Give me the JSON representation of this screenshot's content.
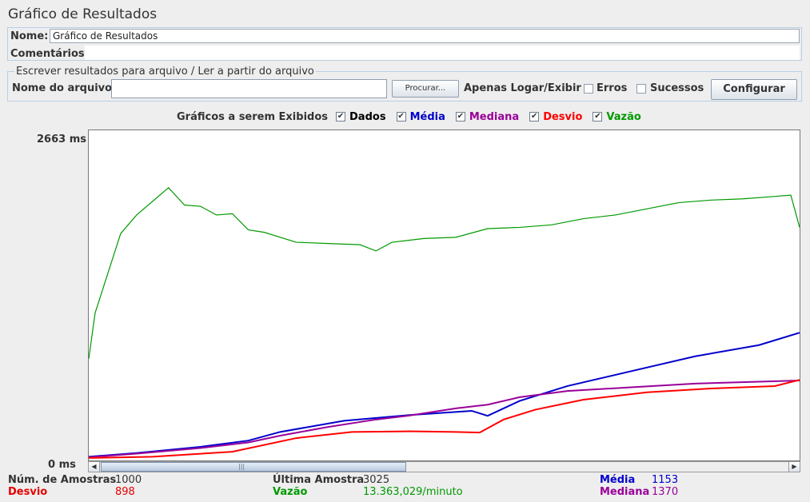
{
  "title": "Gráfico de Resultados",
  "name_field": {
    "label": "Nome:",
    "value": "Gráfico de Resultados"
  },
  "comments": {
    "label": "Comentários:"
  },
  "file_section": {
    "legend": "Escrever resultados para arquivo / Ler a partir do arquivo",
    "file_label": "Nome do arquivo",
    "file_value": "",
    "browse_label": "Procurar...",
    "log_only_label": "Apenas Logar/Exibir",
    "errors_label": "Erros",
    "success_label": "Sucessos",
    "configure_label": "Configurar"
  },
  "graphs": {
    "title": "Gráficos a serem Exibidos",
    "options": [
      {
        "label": "Dados",
        "checked": true,
        "color": "#000000"
      },
      {
        "label": "Média",
        "checked": true,
        "color": "#0000cc"
      },
      {
        "label": "Mediana",
        "checked": true,
        "color": "#990099"
      },
      {
        "label": "Desvio",
        "checked": true,
        "color": "#ff0000"
      },
      {
        "label": "Vazão",
        "checked": true,
        "color": "#009900"
      }
    ]
  },
  "axis": {
    "y_max_label": "2663 ms",
    "y_min_label": "0 ms"
  },
  "stats": {
    "samples_label": "Núm. de Amostras",
    "samples_value": "1000",
    "last_sample_label": "Última Amostra",
    "last_sample_value": "3025",
    "average_label": "Média",
    "average_value": "1153",
    "deviation_label": "Desvio",
    "deviation_value": "898",
    "throughput_label": "Vazão",
    "throughput_value": "13.363,029/minuto",
    "median_label": "Mediana",
    "median_value": "1370"
  },
  "chart_data": {
    "type": "line",
    "ylim": [
      0,
      2663
    ],
    "series": [
      {
        "name": "Média",
        "color": "#0000cc",
        "points": [
          [
            0,
            30
          ],
          [
            60,
            60
          ],
          [
            140,
            110
          ],
          [
            200,
            160
          ],
          [
            240,
            230
          ],
          [
            320,
            320
          ],
          [
            400,
            365
          ],
          [
            480,
            400
          ],
          [
            500,
            360
          ],
          [
            540,
            480
          ],
          [
            600,
            600
          ],
          [
            680,
            720
          ],
          [
            760,
            840
          ],
          [
            840,
            930
          ],
          [
            891,
            1030
          ]
        ]
      },
      {
        "name": "Mediana",
        "color": "#990099",
        "points": [
          [
            0,
            25
          ],
          [
            60,
            55
          ],
          [
            140,
            100
          ],
          [
            200,
            145
          ],
          [
            240,
            200
          ],
          [
            300,
            270
          ],
          [
            360,
            330
          ],
          [
            400,
            360
          ],
          [
            460,
            420
          ],
          [
            500,
            450
          ],
          [
            540,
            510
          ],
          [
            600,
            560
          ],
          [
            680,
            590
          ],
          [
            760,
            620
          ],
          [
            840,
            635
          ],
          [
            891,
            645
          ]
        ]
      },
      {
        "name": "Desvio",
        "color": "#ff0000",
        "points": [
          [
            0,
            20
          ],
          [
            80,
            30
          ],
          [
            180,
            70
          ],
          [
            260,
            180
          ],
          [
            330,
            230
          ],
          [
            400,
            235
          ],
          [
            460,
            230
          ],
          [
            490,
            225
          ],
          [
            520,
            330
          ],
          [
            560,
            410
          ],
          [
            620,
            490
          ],
          [
            700,
            550
          ],
          [
            780,
            580
          ],
          [
            860,
            600
          ],
          [
            891,
            650
          ]
        ]
      },
      {
        "name": "Vazão",
        "color": "#009900",
        "points": [
          [
            0,
            820
          ],
          [
            8,
            1190
          ],
          [
            20,
            1430
          ],
          [
            40,
            1830
          ],
          [
            60,
            1980
          ],
          [
            80,
            2090
          ],
          [
            100,
            2200
          ],
          [
            120,
            2060
          ],
          [
            140,
            2050
          ],
          [
            160,
            1980
          ],
          [
            180,
            1990
          ],
          [
            200,
            1860
          ],
          [
            220,
            1840
          ],
          [
            260,
            1760
          ],
          [
            300,
            1750
          ],
          [
            340,
            1740
          ],
          [
            360,
            1690
          ],
          [
            380,
            1760
          ],
          [
            420,
            1790
          ],
          [
            460,
            1800
          ],
          [
            500,
            1870
          ],
          [
            540,
            1880
          ],
          [
            580,
            1900
          ],
          [
            620,
            1950
          ],
          [
            660,
            1980
          ],
          [
            700,
            2030
          ],
          [
            740,
            2080
          ],
          [
            780,
            2100
          ],
          [
            820,
            2110
          ],
          [
            860,
            2130
          ],
          [
            880,
            2140
          ],
          [
            891,
            1880
          ]
        ]
      }
    ]
  }
}
